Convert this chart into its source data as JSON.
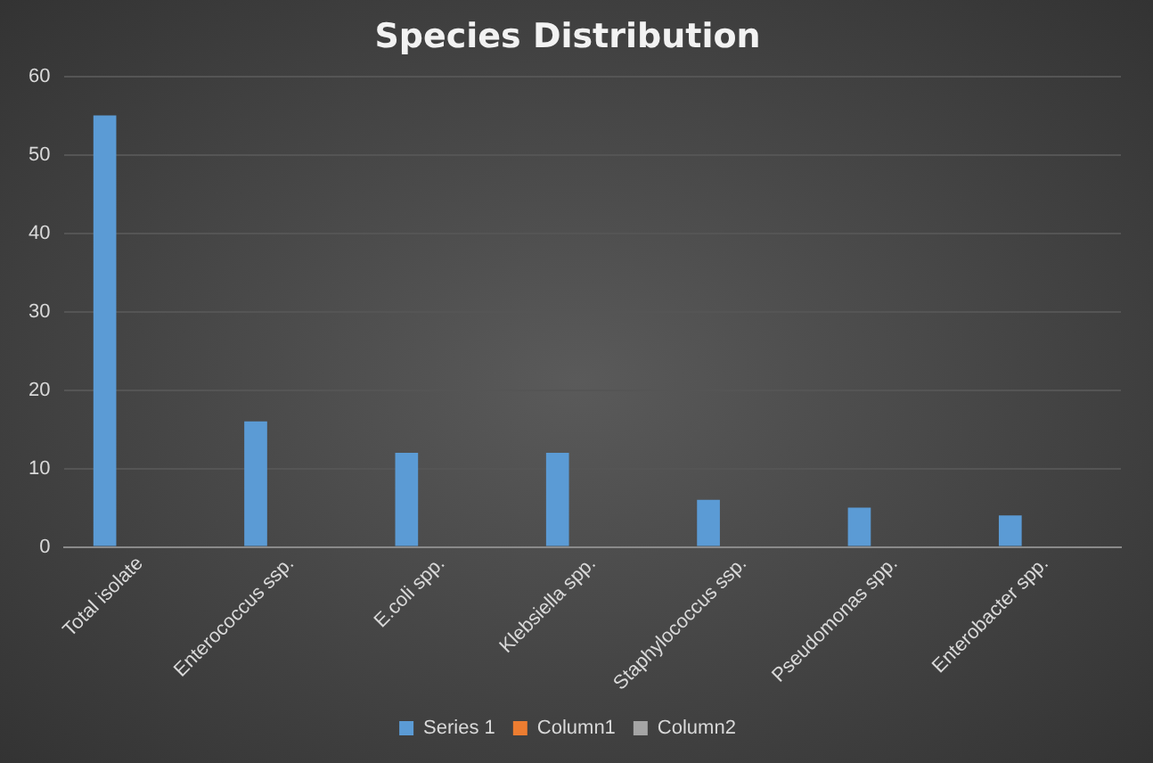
{
  "chart_data": {
    "type": "bar",
    "title": "Species Distribution",
    "categories": [
      "Total isolate",
      "Enterococcus ssp.",
      "E.coli spp.",
      "Klebsiella spp.",
      "Staphylococcus ssp.",
      "Pseudomonas spp.",
      "Enterobacter spp."
    ],
    "series": [
      {
        "name": "Series 1",
        "color": "#5b9bd5",
        "values": [
          55,
          16,
          12,
          12,
          6,
          5,
          4
        ]
      },
      {
        "name": "Column1",
        "color": "#ed7d31",
        "values": [
          null,
          null,
          null,
          null,
          null,
          null,
          null
        ]
      },
      {
        "name": "Column2",
        "color": "#a5a5a5",
        "values": [
          null,
          null,
          null,
          null,
          null,
          null,
          null
        ]
      }
    ],
    "ylim": [
      0,
      60
    ],
    "yticks": [
      0,
      10,
      20,
      30,
      40,
      50,
      60
    ],
    "grid": "y",
    "legend": "bottom"
  }
}
